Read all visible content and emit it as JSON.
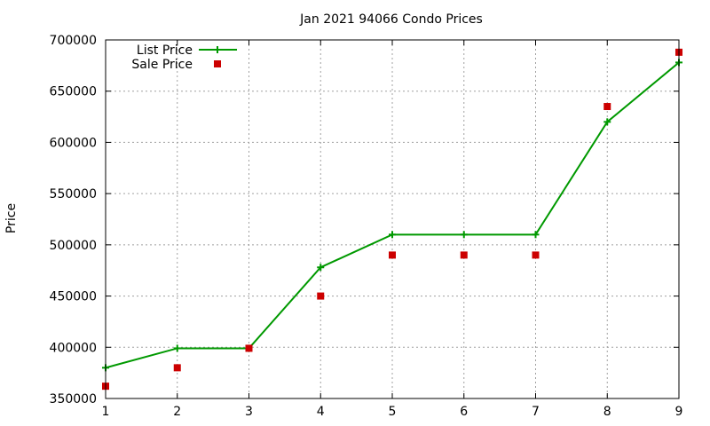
{
  "chart_data": {
    "type": "line",
    "title": "Jan 2021 94066 Condo Prices",
    "xlabel": "",
    "ylabel": "Price",
    "xlim": [
      1,
      9
    ],
    "ylim": [
      350000,
      700000
    ],
    "x_ticks": [
      "1",
      "2",
      "3",
      "4",
      "5",
      "6",
      "7",
      "8",
      "9"
    ],
    "y_ticks": [
      "350000",
      "400000",
      "450000",
      "500000",
      "550000",
      "600000",
      "650000",
      "700000"
    ],
    "grid": true,
    "legend_position": "top-left",
    "x": [
      1,
      2,
      3,
      4,
      5,
      6,
      7,
      8,
      9
    ],
    "series": [
      {
        "name": "List Price",
        "style": "line-with-plus-markers",
        "color": "#009900",
        "values": [
          380000,
          399000,
          399000,
          478000,
          510000,
          510000,
          510000,
          620000,
          678000
        ]
      },
      {
        "name": "Sale Price",
        "style": "square-markers",
        "color": "#cc0000",
        "values": [
          362000,
          380000,
          399000,
          450000,
          490000,
          490000,
          490000,
          635000,
          688000
        ]
      }
    ]
  }
}
